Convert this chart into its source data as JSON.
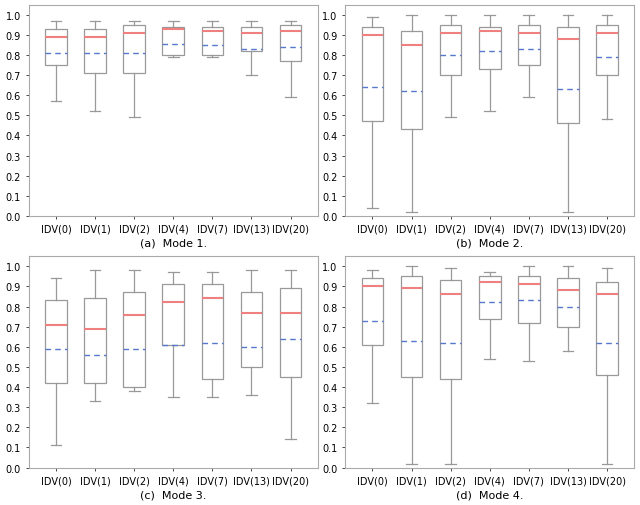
{
  "modes": [
    "(a)  Mode 1.",
    "(b)  Mode 2.",
    "(c)  Mode 3.",
    "(d)  Mode 4."
  ],
  "categories": [
    "IDV(0)",
    "IDV(1)",
    "IDV(2)",
    "IDV(4)",
    "IDV(7)",
    "IDV(13)",
    "IDV(20)"
  ],
  "boxplot_data": {
    "mode1": {
      "whislo": [
        0.57,
        0.52,
        0.49,
        0.79,
        0.79,
        0.7,
        0.59
      ],
      "q1": [
        0.75,
        0.71,
        0.71,
        0.8,
        0.8,
        0.82,
        0.77
      ],
      "med": [
        0.89,
        0.89,
        0.91,
        0.93,
        0.92,
        0.91,
        0.92
      ],
      "q3": [
        0.93,
        0.93,
        0.95,
        0.94,
        0.94,
        0.94,
        0.95
      ],
      "whishi": [
        0.97,
        0.97,
        0.97,
        0.97,
        0.97,
        0.97,
        0.97
      ],
      "mean": [
        0.81,
        0.81,
        0.81,
        0.855,
        0.85,
        0.83,
        0.84
      ]
    },
    "mode2": {
      "whislo": [
        0.04,
        0.02,
        0.49,
        0.52,
        0.59,
        0.02,
        0.48
      ],
      "q1": [
        0.47,
        0.43,
        0.7,
        0.73,
        0.75,
        0.46,
        0.7
      ],
      "med": [
        0.9,
        0.85,
        0.91,
        0.92,
        0.91,
        0.88,
        0.91
      ],
      "q3": [
        0.94,
        0.92,
        0.95,
        0.94,
        0.95,
        0.94,
        0.95
      ],
      "whishi": [
        0.99,
        1.0,
        1.0,
        1.0,
        1.0,
        1.0,
        1.0
      ],
      "mean": [
        0.64,
        0.62,
        0.8,
        0.82,
        0.83,
        0.63,
        0.79
      ]
    },
    "mode3": {
      "whislo": [
        0.11,
        0.33,
        0.38,
        0.35,
        0.35,
        0.36,
        0.14
      ],
      "q1": [
        0.42,
        0.42,
        0.4,
        0.61,
        0.44,
        0.5,
        0.45
      ],
      "med": [
        0.71,
        0.69,
        0.76,
        0.82,
        0.84,
        0.77,
        0.77
      ],
      "q3": [
        0.83,
        0.84,
        0.87,
        0.91,
        0.91,
        0.87,
        0.89
      ],
      "whishi": [
        0.94,
        0.98,
        0.98,
        0.97,
        0.97,
        0.98,
        0.98
      ],
      "mean": [
        0.59,
        0.56,
        0.59,
        0.61,
        0.62,
        0.6,
        0.64
      ]
    },
    "mode4": {
      "whislo": [
        0.32,
        0.02,
        0.02,
        0.54,
        0.53,
        0.58,
        0.02
      ],
      "q1": [
        0.61,
        0.45,
        0.44,
        0.74,
        0.72,
        0.7,
        0.46
      ],
      "med": [
        0.9,
        0.89,
        0.86,
        0.92,
        0.91,
        0.88,
        0.86
      ],
      "q3": [
        0.94,
        0.95,
        0.93,
        0.95,
        0.95,
        0.94,
        0.92
      ],
      "whishi": [
        0.98,
        1.0,
        0.99,
        0.97,
        1.0,
        1.0,
        0.99
      ],
      "mean": [
        0.73,
        0.63,
        0.62,
        0.82,
        0.83,
        0.8,
        0.62
      ]
    }
  },
  "median_color": "#f08080",
  "mean_color": "#5577cc",
  "box_color": "#999999",
  "whisker_color": "#999999",
  "cap_color": "#999999",
  "background_color": "#ffffff",
  "ylim": [
    0.0,
    1.05
  ],
  "yticks": [
    0.0,
    0.1,
    0.2,
    0.3,
    0.4,
    0.5,
    0.6,
    0.7,
    0.8,
    0.9,
    1.0
  ],
  "fig_width": 6.4,
  "fig_height": 5.06,
  "dpi": 100
}
